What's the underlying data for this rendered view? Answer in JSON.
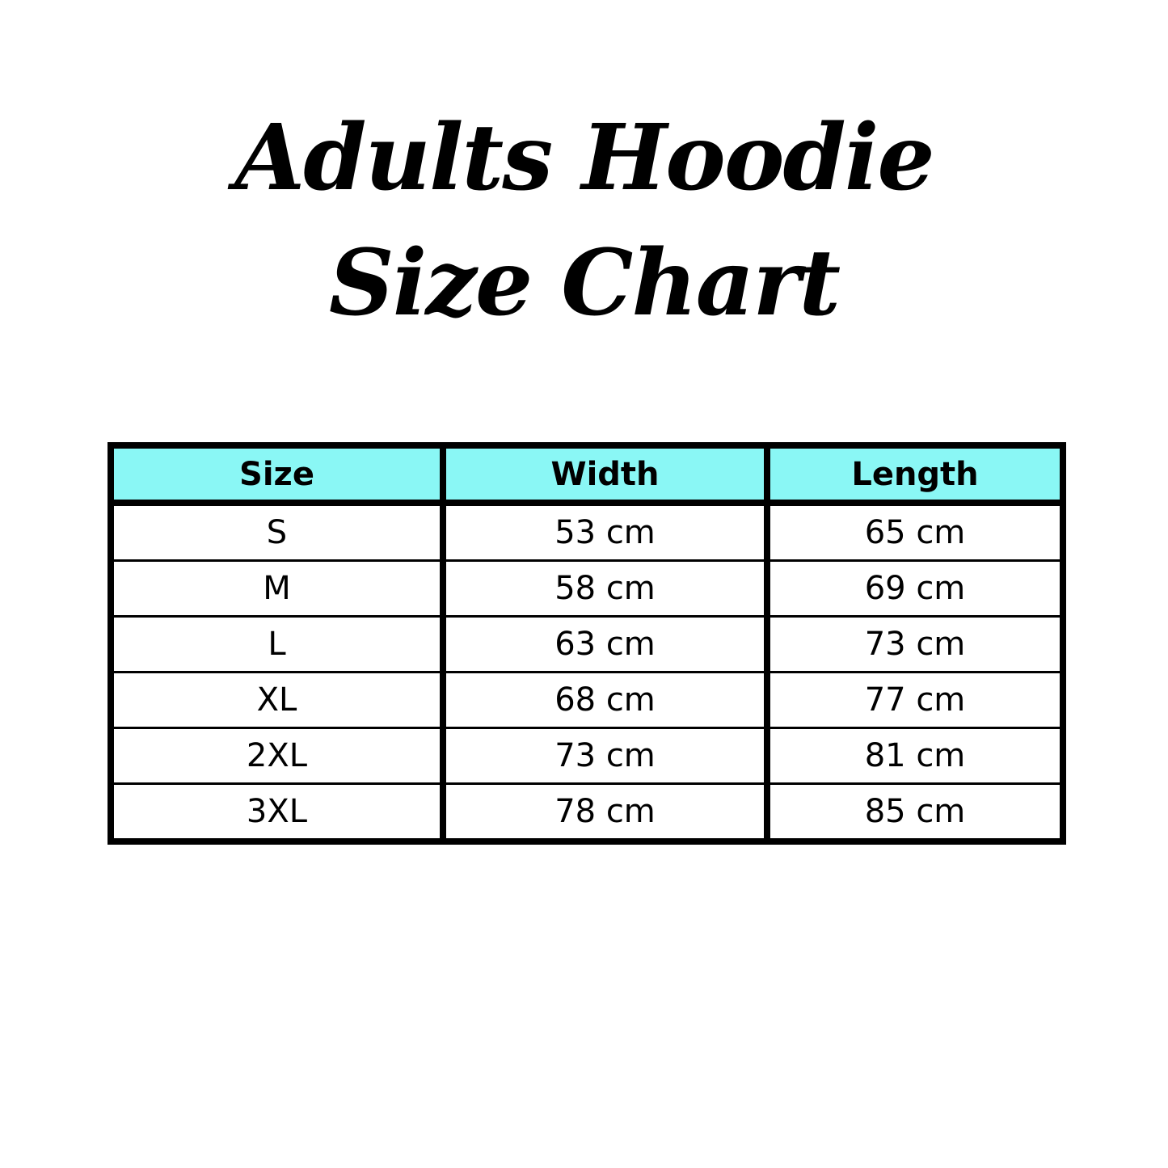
{
  "title": {
    "line1": "Adults Hoodie",
    "line2": "Size Chart"
  },
  "colors": {
    "header_bg": "#8AF7F5",
    "border": "#000000"
  },
  "table": {
    "headers": [
      "Size",
      "Width",
      "Length"
    ],
    "rows": [
      [
        "S",
        "53 cm",
        "65 cm"
      ],
      [
        "M",
        "58 cm",
        "69 cm"
      ],
      [
        "L",
        "63 cm",
        "73 cm"
      ],
      [
        "XL",
        "68 cm",
        "77 cm"
      ],
      [
        "2XL",
        "73 cm",
        "81 cm"
      ],
      [
        "3XL",
        "78 cm",
        "85 cm"
      ]
    ]
  }
}
